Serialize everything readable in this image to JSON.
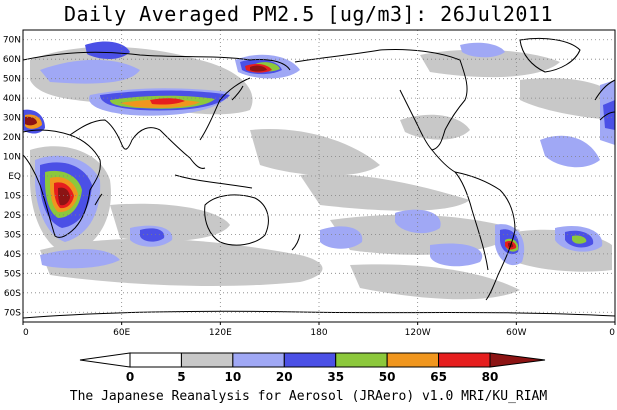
{
  "title": "Daily Averaged PM2.5 [ug/m3]: 26Jul2011",
  "footer": "The Japanese Reanalysis for Aerosol (JRAero) v1.0 MRI/KU_RIAM",
  "map": {
    "projection": "cylindrical",
    "lon_range": [
      0,
      360
    ],
    "lat_range": [
      -75,
      75
    ],
    "lat_labels": [
      "70N",
      "60N",
      "50N",
      "40N",
      "30N",
      "20N",
      "10N",
      "EQ",
      "10S",
      "20S",
      "30S",
      "40S",
      "50S",
      "60S",
      "70S"
    ],
    "lon_labels": [
      "0",
      "60E",
      "120E",
      "180",
      "120W",
      "60W",
      "0"
    ],
    "grid": "dotted"
  },
  "colorbar": {
    "levels": [
      "0",
      "5",
      "10",
      "20",
      "35",
      "50",
      "65",
      "80"
    ],
    "colors": [
      "#ffffff",
      "#c8c8c8",
      "#a0a8f5",
      "#4b50e6",
      "#8cc83c",
      "#f0961e",
      "#e61e1e",
      "#8c1414"
    ]
  }
}
